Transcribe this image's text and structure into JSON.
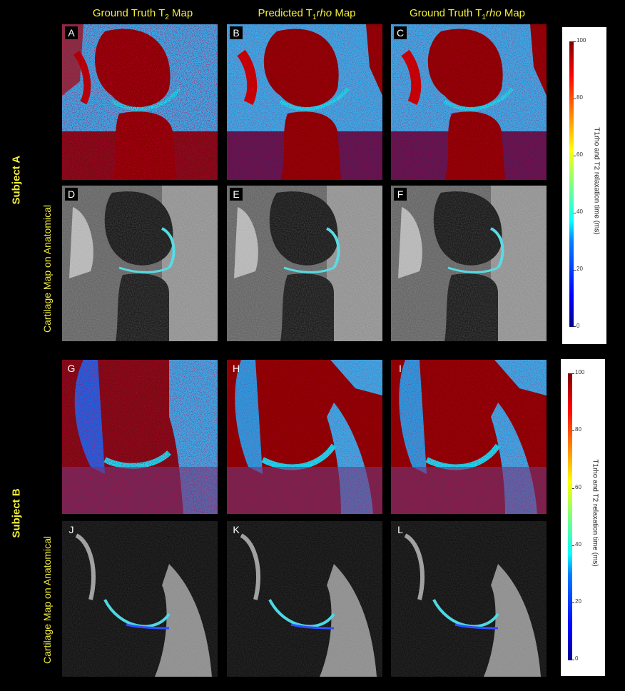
{
  "columns": {
    "c1_pre": "Ground Truth T",
    "c1_sub": "2",
    "c1_post": " Map",
    "c2_pre": "Predicted T",
    "c2_sub": "1",
    "c2_italic": "rho",
    "c2_post": " Map",
    "c3_pre": "Ground Truth T",
    "c3_sub": "1",
    "c3_italic": "rho",
    "c3_post": " Map"
  },
  "subjects": {
    "a": "Subject A",
    "b": "Subject B"
  },
  "row_label": "Cartilage Map on Anatomical",
  "panels": {
    "A": "A",
    "B": "B",
    "C": "C",
    "D": "D",
    "E": "E",
    "F": "F",
    "G": "G",
    "H": "H",
    "I": "I",
    "J": "J",
    "K": "K",
    "L": "L"
  },
  "colorbar": {
    "ticks": [
      "100",
      "80",
      "60",
      "40",
      "20",
      "0"
    ],
    "label": "T1rho and T2 relaxation time (ms)"
  }
}
